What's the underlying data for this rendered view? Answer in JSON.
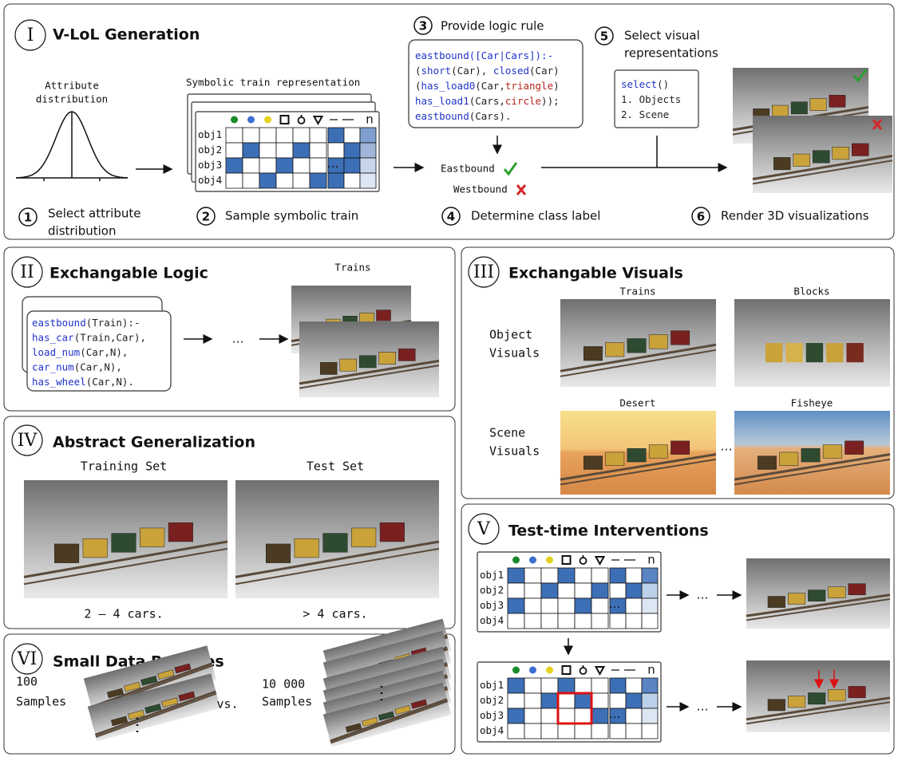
{
  "generation": {
    "numeral": "I",
    "title": "V-LoL Generation",
    "attribute_label": [
      "Attribute",
      "distribution"
    ],
    "table_label": "Symbolic train representation",
    "steps": [
      {
        "number": "1",
        "label": [
          "Select attribute",
          "distribution"
        ]
      },
      {
        "number": "2",
        "label": [
          "Sample symbolic train"
        ]
      },
      {
        "number": "3",
        "label": [
          "Provide logic rule"
        ]
      },
      {
        "number": "4",
        "label": [
          "Determine class label"
        ]
      },
      {
        "number": "5",
        "label": [
          "Select visual",
          "representations"
        ]
      },
      {
        "number": "6",
        "label": [
          "Render 3D visualizations"
        ]
      }
    ],
    "rule": [
      [
        {
          "text": "eastbound",
          "style": "pred"
        },
        {
          "text": "([Car|Cars]):-",
          "style": "pred"
        }
      ],
      [
        {
          "text": "(",
          "style": "arg"
        },
        {
          "text": "short",
          "style": "pred"
        },
        {
          "text": "(Car), ",
          "style": "arg"
        },
        {
          "text": "closed",
          "style": "pred"
        },
        {
          "text": "(Car)",
          "style": "arg"
        }
      ],
      [
        {
          "text": "(",
          "style": "arg"
        },
        {
          "text": "has_load0",
          "style": "pred"
        },
        {
          "text": "(Car,",
          "style": "arg"
        },
        {
          "text": "triangle",
          "style": "str"
        },
        {
          "text": ")",
          "style": "arg"
        }
      ],
      [
        {
          "text": "has_load1",
          "style": "pred"
        },
        {
          "text": "(Cars,",
          "style": "arg"
        },
        {
          "text": "circle",
          "style": "str"
        },
        {
          "text": "));",
          "style": "arg"
        }
      ],
      [
        {
          "text": "eastbound",
          "style": "pred"
        },
        {
          "text": "(Cars).",
          "style": "arg"
        }
      ]
    ],
    "classes": [
      "Eastbound",
      "Westbound"
    ],
    "select": [
      [
        {
          "text": "select",
          "style": "pred"
        },
        {
          "text": "()",
          "style": "arg"
        }
      ],
      [
        {
          "text": "1. Objects",
          "style": "arg"
        }
      ],
      [
        {
          "text": "2. Scene",
          "style": "arg"
        }
      ]
    ]
  },
  "table": {
    "rows": [
      "obj1",
      "obj2",
      "obj3",
      "obj4"
    ],
    "n": "n"
  },
  "ellipsis": "…",
  "logic": {
    "numeral": "II",
    "title": "Exchangable Logic",
    "image_label": "Trains",
    "rule": [
      [
        {
          "text": "eastbound",
          "style": "pred"
        },
        {
          "text": "(Train):-",
          "style": "arg"
        }
      ],
      [
        {
          "text": "has_car",
          "style": "pred"
        },
        {
          "text": "(Train,Car),",
          "style": "arg"
        }
      ],
      [
        {
          "text": "load_num",
          "style": "pred"
        },
        {
          "text": "(Car,N),",
          "style": "arg"
        }
      ],
      [
        {
          "text": "car_num",
          "style": "pred"
        },
        {
          "text": "(Car,N),",
          "style": "arg"
        }
      ],
      [
        {
          "text": "has_wheel",
          "style": "pred"
        },
        {
          "text": "(Car,N).",
          "style": "arg"
        }
      ]
    ]
  },
  "visuals": {
    "numeral": "III",
    "title": "Exchangable Visuals",
    "rows": [
      [
        "Object",
        "Visuals"
      ],
      [
        "Scene",
        "Visuals"
      ]
    ],
    "images": [
      "Trains",
      "Blocks",
      "Desert",
      "Fisheye"
    ]
  },
  "generalization": {
    "numeral": "IV",
    "title": "Abstract Generalization",
    "sets": [
      {
        "name": "Training Set",
        "caption": "2 – 4 cars."
      },
      {
        "name": "Test Set",
        "caption": "> 4 cars."
      }
    ]
  },
  "interventions": {
    "numeral": "V",
    "title": "Test-time Interventions"
  },
  "small_data": {
    "numeral": "VI",
    "title": "Small Data Regimes",
    "left": [
      "100",
      "Samples"
    ],
    "vs": "vs.",
    "right": [
      "10 000",
      "Samples"
    ]
  }
}
